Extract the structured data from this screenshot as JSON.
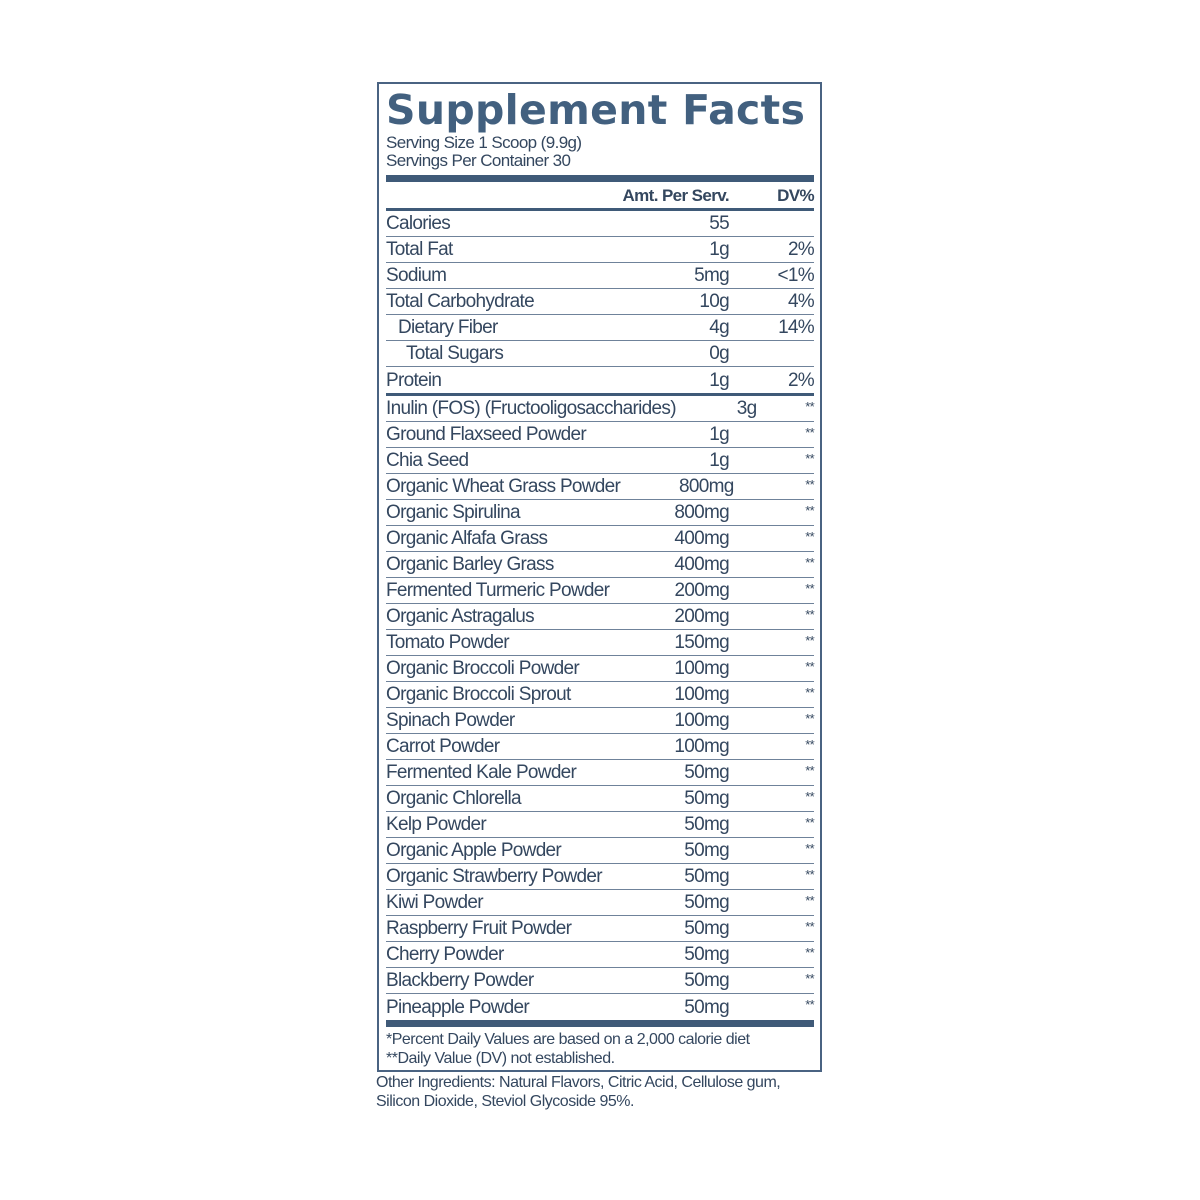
{
  "title": "Supplement Facts",
  "serving_size": "Serving Size 1 Scoop (9.9g)",
  "servings_per_container": "Servings Per Container 30",
  "header": {
    "amount": "Amt. Per Serv.",
    "dv": "DV%"
  },
  "nutrients": [
    {
      "name": "Calories",
      "amount": "55",
      "dv": "",
      "indent": 0
    },
    {
      "name": "Total Fat",
      "amount": "1g",
      "dv": "2%",
      "indent": 0
    },
    {
      "name": "Sodium",
      "amount": "5mg",
      "dv": "<1%",
      "indent": 0
    },
    {
      "name": "Total Carbohydrate",
      "amount": "10g",
      "dv": "4%",
      "indent": 0
    },
    {
      "name": "Dietary Fiber",
      "amount": "4g",
      "dv": "14%",
      "indent": 1
    },
    {
      "name": "Total Sugars",
      "amount": "0g",
      "dv": "",
      "indent": 2
    },
    {
      "name": "Protein",
      "amount": "1g",
      "dv": "2%",
      "indent": 0
    }
  ],
  "ingredients": [
    {
      "name": "Inulin (FOS) (Fructooligosaccharides)",
      "amount": "3g",
      "dv": "**"
    },
    {
      "name": "Ground Flaxseed Powder",
      "amount": "1g",
      "dv": "**"
    },
    {
      "name": "Chia Seed",
      "amount": "1g",
      "dv": "**"
    },
    {
      "name": "Organic Wheat Grass Powder",
      "amount": "800mg",
      "dv": "**"
    },
    {
      "name": "Organic Spirulina",
      "amount": "800mg",
      "dv": "**"
    },
    {
      "name": "Organic Alfafa Grass",
      "amount": "400mg",
      "dv": "**"
    },
    {
      "name": "Organic Barley Grass",
      "amount": "400mg",
      "dv": "**"
    },
    {
      "name": "Fermented Turmeric Powder",
      "amount": "200mg",
      "dv": "**"
    },
    {
      "name": "Organic Astragalus",
      "amount": "200mg",
      "dv": "**"
    },
    {
      "name": "Tomato Powder",
      "amount": "150mg",
      "dv": "**"
    },
    {
      "name": "Organic Broccoli Powder",
      "amount": "100mg",
      "dv": "**"
    },
    {
      "name": "Organic Broccoli Sprout",
      "amount": "100mg",
      "dv": "**"
    },
    {
      "name": "Spinach Powder",
      "amount": "100mg",
      "dv": "**"
    },
    {
      "name": "Carrot Powder",
      "amount": "100mg",
      "dv": "**"
    },
    {
      "name": "Fermented Kale Powder",
      "amount": "50mg",
      "dv": "**"
    },
    {
      "name": "Organic Chlorella",
      "amount": "50mg",
      "dv": "**"
    },
    {
      "name": "Kelp Powder",
      "amount": "50mg",
      "dv": "**"
    },
    {
      "name": "Organic Apple Powder",
      "amount": "50mg",
      "dv": "**"
    },
    {
      "name": "Organic Strawberry Powder",
      "amount": "50mg",
      "dv": "**"
    },
    {
      "name": "Kiwi Powder",
      "amount": "50mg",
      "dv": "**"
    },
    {
      "name": "Raspberry Fruit Powder",
      "amount": "50mg",
      "dv": "**"
    },
    {
      "name": "Cherry Powder",
      "amount": "50mg",
      "dv": "**"
    },
    {
      "name": "Blackberry Powder",
      "amount": "50mg",
      "dv": "**"
    },
    {
      "name": "Pineapple Powder",
      "amount": "50mg",
      "dv": "**"
    }
  ],
  "footnotes": [
    "*Percent Daily Values are based on a 2,000 calorie diet",
    "**Daily Value (DV) not established."
  ],
  "other_ingredients": "Other Ingredients: Natural Flavors, Citric Acid, Cellulose gum, Silicon Dioxide, Steviol Glycoside 95%.",
  "colors": {
    "accent": "#3f5a78",
    "text": "#34475f"
  }
}
